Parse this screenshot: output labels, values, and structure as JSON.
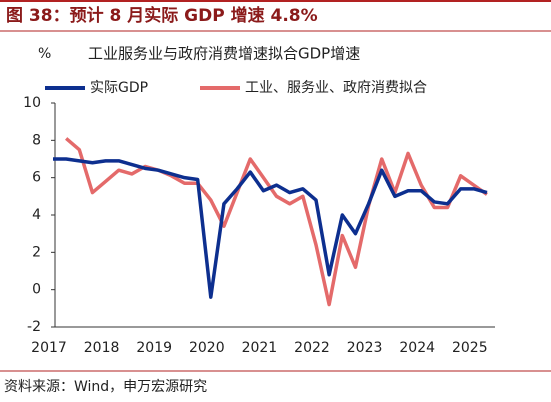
{
  "chart_data": {
    "type": "line",
    "title": "图 38：预计 8 月实际 GDP 增速 4.8%",
    "subtitle": "工业服务业与政府消费增速拟合GDP增速",
    "y_label": "%",
    "source": "资料来源：Wind，申万宏源研究",
    "categories": [
      "2017",
      null,
      null,
      null,
      "2018",
      null,
      null,
      null,
      "2019",
      null,
      null,
      null,
      "2020",
      null,
      null,
      null,
      "2021",
      null,
      null,
      null,
      "2022",
      null,
      null,
      null,
      "2023",
      null,
      null,
      null,
      "2024",
      null,
      null,
      null,
      "2025",
      null
    ],
    "series": [
      {
        "name": "实际GDP",
        "color": "#0d2f8f",
        "values": [
          7.0,
          7.0,
          6.9,
          6.8,
          6.9,
          6.9,
          6.7,
          6.5,
          6.4,
          6.2,
          6.0,
          5.9,
          -0.4,
          4.6,
          5.4,
          6.3,
          5.3,
          5.6,
          5.2,
          5.4,
          4.8,
          0.8,
          4.0,
          3.0,
          4.6,
          6.4,
          5.0,
          5.3,
          5.3,
          4.7,
          4.6,
          5.4,
          5.4,
          5.2
        ]
      },
      {
        "name": "工业、服务业、政府消费拟合",
        "color": "#e46a6a",
        "values": [
          null,
          8.1,
          7.5,
          5.2,
          5.8,
          6.4,
          6.2,
          6.6,
          6.4,
          6.1,
          5.7,
          5.7,
          4.8,
          3.4,
          5.2,
          7.0,
          6.0,
          5.0,
          4.6,
          5.0,
          2.4,
          -0.8,
          2.9,
          1.2,
          4.5,
          7.0,
          5.2,
          7.3,
          5.6,
          4.4,
          4.4,
          6.1,
          5.6,
          5.1
        ]
      }
    ],
    "ylim": [
      -2,
      10
    ],
    "yticks": [
      -2,
      0,
      2,
      4,
      6,
      8,
      10
    ]
  }
}
